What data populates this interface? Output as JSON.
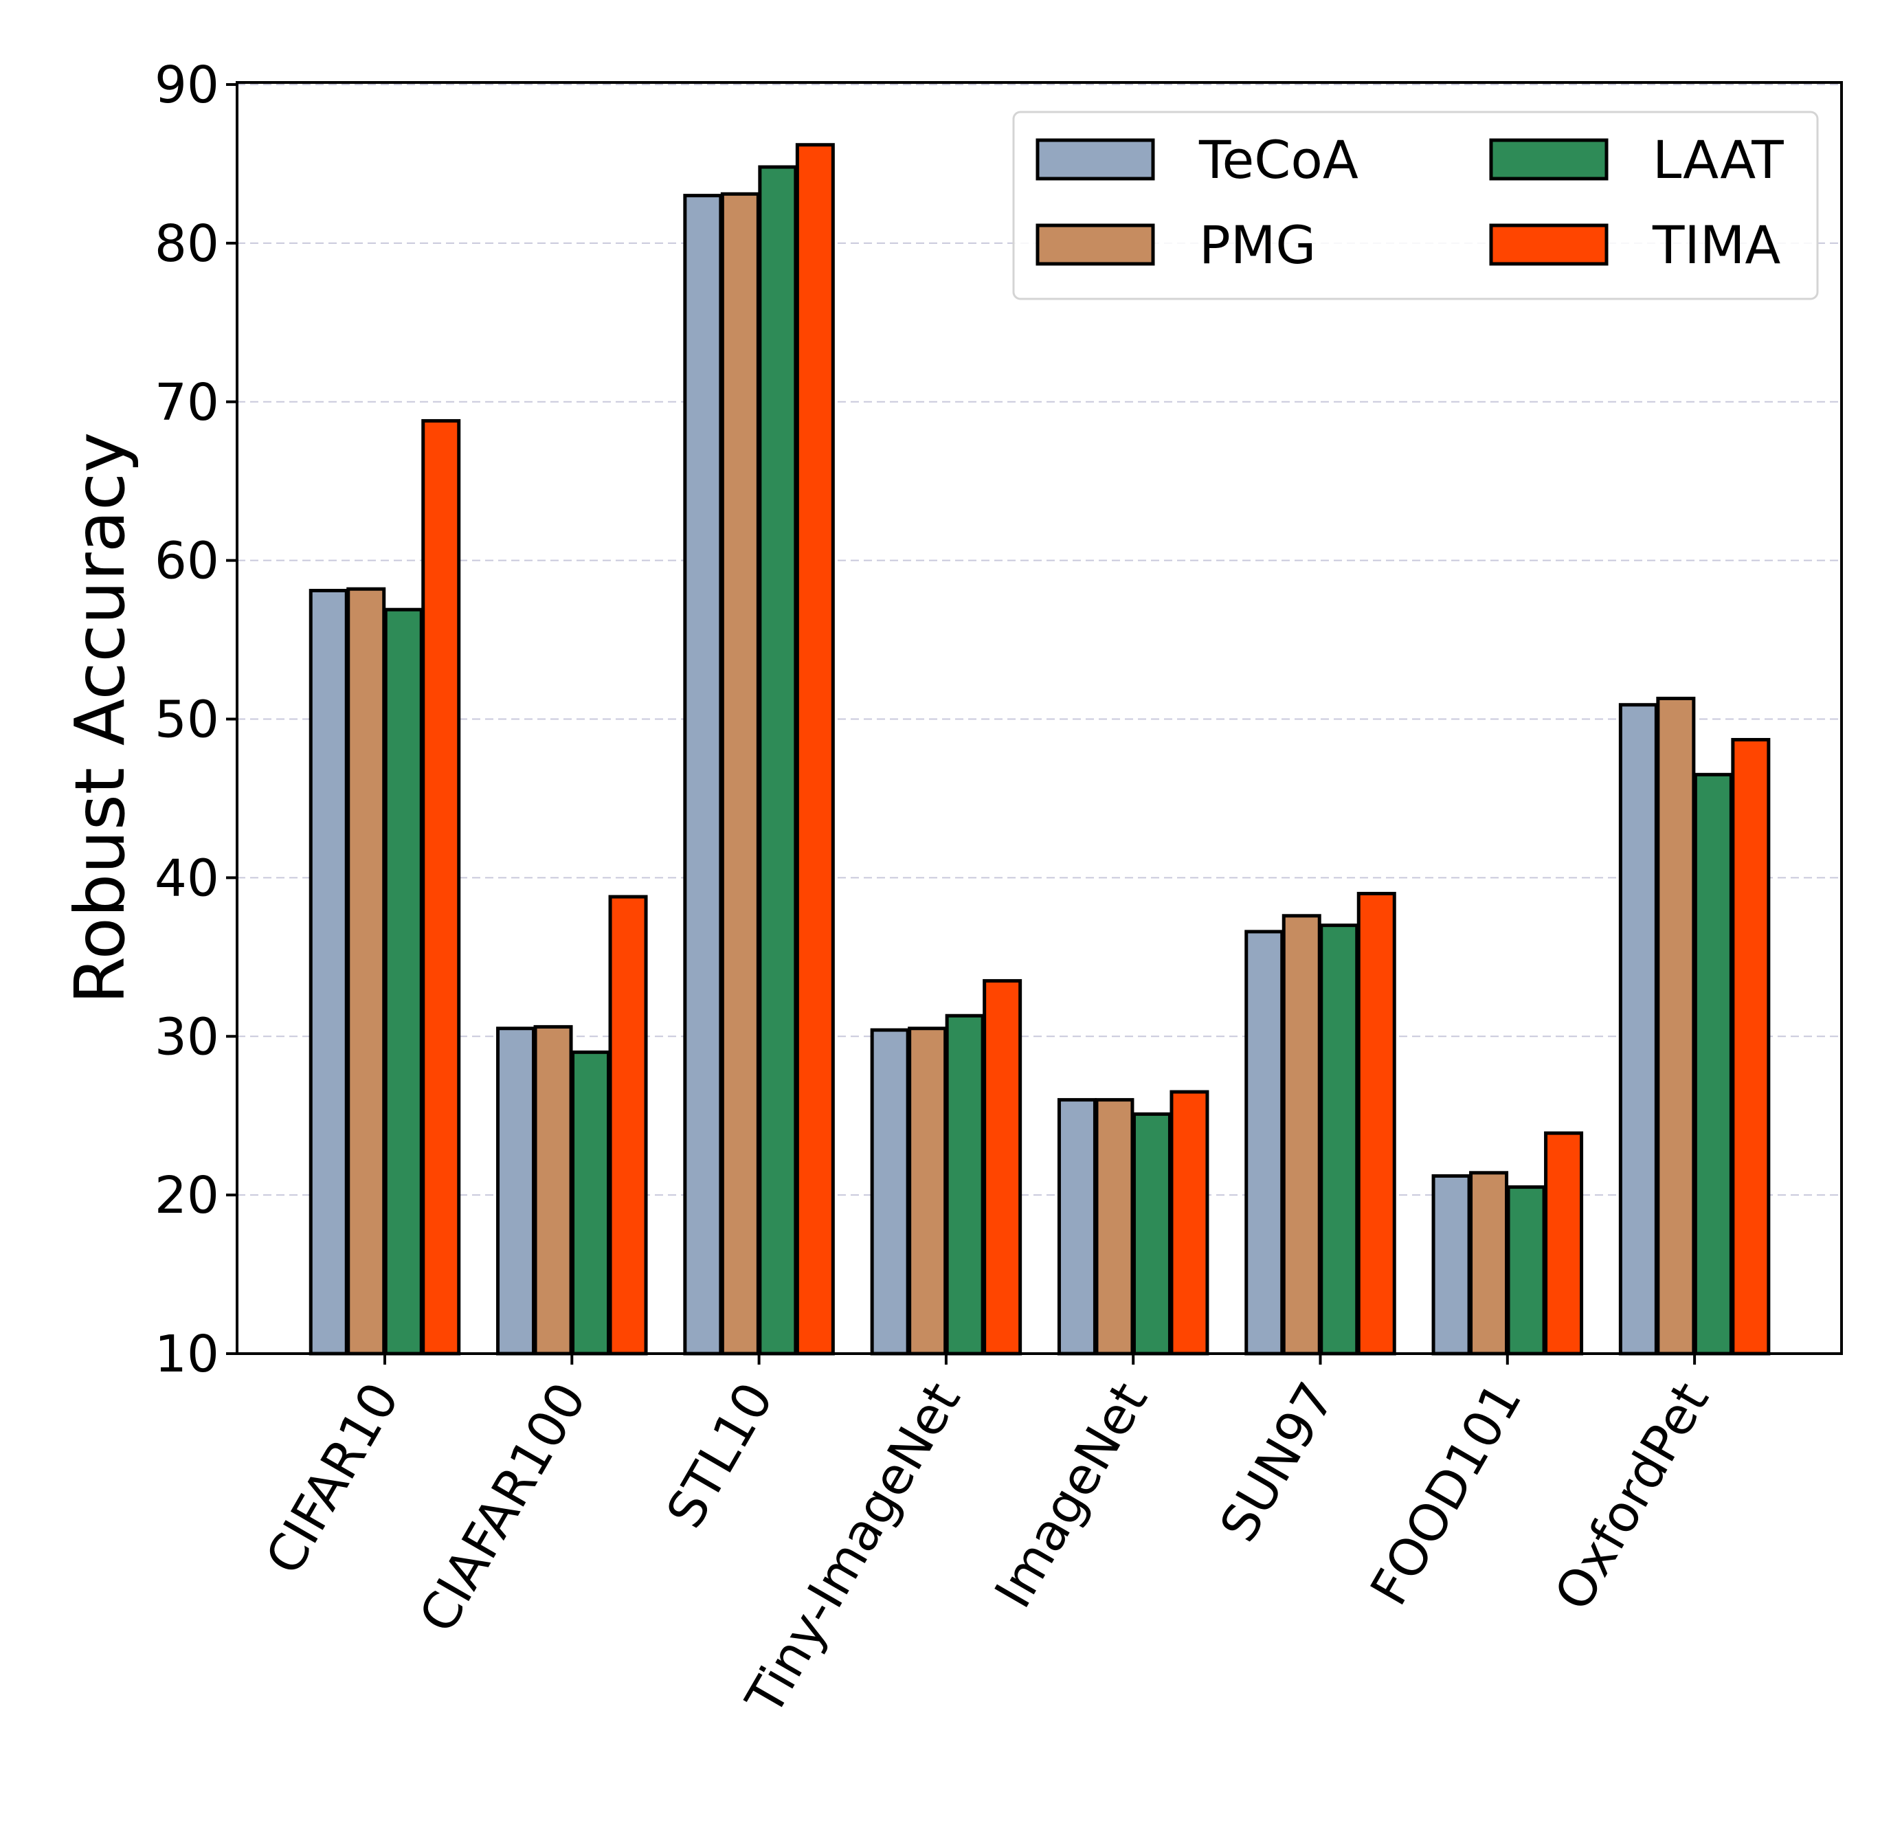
{
  "chart_data": {
    "type": "bar",
    "title": "",
    "xlabel": "",
    "ylabel": "Robust Accuracy",
    "ylim": [
      10,
      90
    ],
    "yticks": [
      10,
      20,
      30,
      40,
      50,
      60,
      70,
      80,
      90
    ],
    "grid": "horizontal dashed",
    "legend_position": "top-right",
    "categories": [
      "CIFAR10",
      "CIAFAR100",
      "STL10",
      "Tiny-ImageNet",
      "ImageNet",
      "SUN97",
      "FOOD101",
      "OxfordPet"
    ],
    "series": [
      {
        "name": "TeCoA",
        "color": "#94a7c0",
        "values": [
          58.1,
          30.5,
          83.0,
          30.4,
          26.0,
          36.6,
          21.2,
          50.9
        ]
      },
      {
        "name": "PMG",
        "color": "#c68c60",
        "values": [
          58.2,
          30.6,
          83.1,
          30.5,
          26.0,
          37.6,
          21.4,
          51.3
        ]
      },
      {
        "name": "LAAT",
        "color": "#2e8b57",
        "values": [
          56.9,
          29.0,
          84.8,
          31.3,
          25.1,
          37.0,
          20.5,
          46.5
        ]
      },
      {
        "name": "TIMA",
        "color": "#ff4500",
        "values": [
          68.8,
          38.8,
          86.2,
          33.5,
          26.5,
          39.0,
          23.9,
          48.7
        ]
      }
    ]
  }
}
